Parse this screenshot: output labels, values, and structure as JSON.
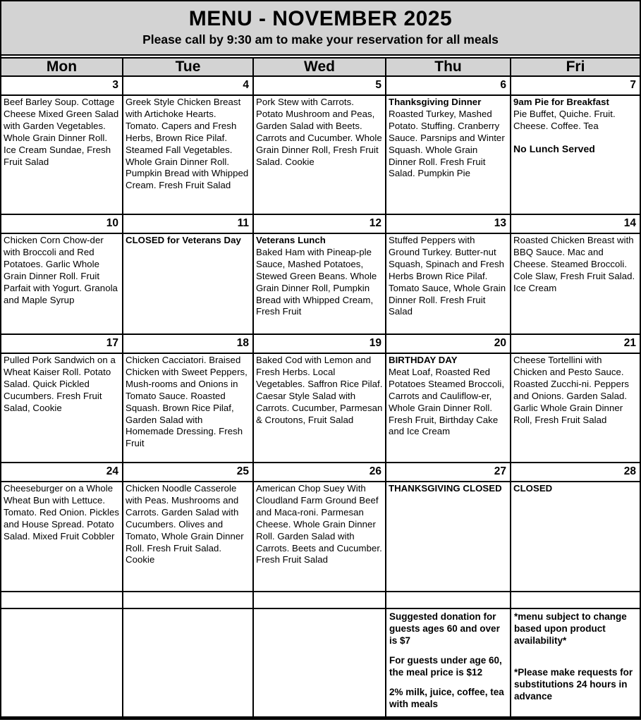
{
  "header": {
    "title": "MENU - NOVEMBER 2025",
    "subtitle": "Please call by 9:30 am to make your reservation for all meals"
  },
  "days": [
    "Mon",
    "Tue",
    "Wed",
    "Thu",
    "Fri"
  ],
  "weeks": [
    {
      "dates": [
        "3",
        "4",
        "5",
        "6",
        "7"
      ],
      "cells": [
        {
          "body": "Beef Barley Soup. Cottage Cheese Mixed Green Salad with Garden Vegetables. Whole Grain Dinner Roll. Ice Cream Sundae, Fresh Fruit Salad"
        },
        {
          "body": "Greek Style Chicken Breast with Artichoke Hearts. Tomato. Capers and Fresh Herbs, Brown Rice Pilaf. Steamed Fall Vegetables. Whole Grain Dinner Roll. Pumpkin Bread with Whipped Cream. Fresh Fruit Salad"
        },
        {
          "body": "Pork Stew with Carrots. Potato Mushroom and Peas, Garden Salad with Beets. Carrots and Cucumber. Whole Grain Dinner Roll, Fresh Fruit Salad. Cookie"
        },
        {
          "title": "Thanksgiving Dinner",
          "body": "Roasted Turkey, Mashed Potato. Stuffing. Cranberry Sauce. Parsnips and Winter Squash. Whole Grain Dinner Roll. Fresh Fruit Salad. Pumpkin Pie"
        },
        {
          "title": "9am Pie for Breakfast",
          "body": "Pie Buffet, Quiche. Fruit. Cheese. Coffee. Tea",
          "extra": "No Lunch Served"
        }
      ]
    },
    {
      "dates": [
        "10",
        "11",
        "12",
        "13",
        "14"
      ],
      "cells": [
        {
          "body": "Chicken Corn Chow-der with Broccoli and Red Potatoes. Garlic Whole Grain Dinner Roll. Fruit Parfait with Yogurt. Granola and Maple Syrup"
        },
        {
          "title": "CLOSED for Veterans Day"
        },
        {
          "title": "Veterans Lunch",
          "body": "Baked Ham with Pineap-ple Sauce, Mashed Potatoes, Stewed Green Beans. Whole Grain Dinner Roll, Pumpkin Bread with Whipped Cream, Fresh Fruit"
        },
        {
          "body": "Stuffed Peppers with Ground Turkey. Butter-nut Squash, Spinach and Fresh Herbs Brown Rice Pilaf. Tomato Sauce, Whole Grain Dinner Roll. Fresh Fruit Salad"
        },
        {
          "body": "Roasted Chicken Breast with BBQ Sauce. Mac and Cheese. Steamed Broccoli. Cole Slaw, Fresh Fruit Salad. Ice Cream"
        }
      ]
    },
    {
      "dates": [
        "17",
        "18",
        "19",
        "20",
        "21"
      ],
      "cells": [
        {
          "body": "Pulled Pork Sandwich on a Wheat Kaiser Roll. Potato Salad. Quick Pickled Cucumbers. Fresh Fruit Salad, Cookie"
        },
        {
          "body": "Chicken Cacciatori. Braised Chicken with Sweet Peppers, Mush-rooms and Onions in Tomato Sauce. Roasted Squash. Brown Rice Pilaf, Garden Salad with Homemade Dressing. Fresh Fruit"
        },
        {
          "body": "Baked Cod with Lemon and Fresh Herbs. Local Vegetables. Saffron Rice Pilaf. Caesar Style Salad with Carrots. Cucumber, Parmesan & Croutons, Fruit Salad"
        },
        {
          "title": "BIRTHDAY DAY",
          "body": "Meat Loaf, Roasted Red Potatoes Steamed Broccoli, Carrots and Cauliflow-er, Whole Grain Dinner Roll. Fresh Fruit, Birthday Cake and Ice Cream"
        },
        {
          "body": "Cheese Tortellini with Chicken and Pesto Sauce. Roasted Zucchi-ni. Peppers and Onions. Garden Salad. Garlic Whole Grain Dinner Roll, Fresh Fruit Salad"
        }
      ]
    },
    {
      "dates": [
        "24",
        "25",
        "26",
        "27",
        "28"
      ],
      "cells": [
        {
          "body": "Cheeseburger on a Whole Wheat Bun with Lettuce. Tomato. Red Onion. Pickles and House Spread. Potato Salad. Mixed Fruit Cobbler"
        },
        {
          "body": "Chicken Noodle Casserole with Peas. Mushrooms and Carrots. Garden Salad with Cucumbers. Olives and Tomato, Whole Grain Dinner Roll. Fresh Fruit Salad. Cookie"
        },
        {
          "body": "American Chop Suey With Cloudland Farm Ground Beef and Maca-roni. Parmesan Cheese. Whole Grain Dinner Roll. Garden Salad with Carrots. Beets and Cucumber. Fresh Fruit Salad"
        },
        {
          "title": "THANKSGIVING CLOSED"
        },
        {
          "title": "CLOSED"
        }
      ]
    }
  ],
  "footer": {
    "thu": [
      "Suggested donation for guests ages 60 and over is $7",
      "For guests under age 60, the meal price is $12",
      "2% milk, juice, coffee, tea with meals"
    ],
    "fri": [
      "*menu subject to change based upon product availability*",
      "*Please make requests for substitutions 24 hours in advance"
    ]
  },
  "colors": {
    "header_bg": "#d3d3d3",
    "border": "#000000",
    "cell_bg": "#ffffff"
  }
}
